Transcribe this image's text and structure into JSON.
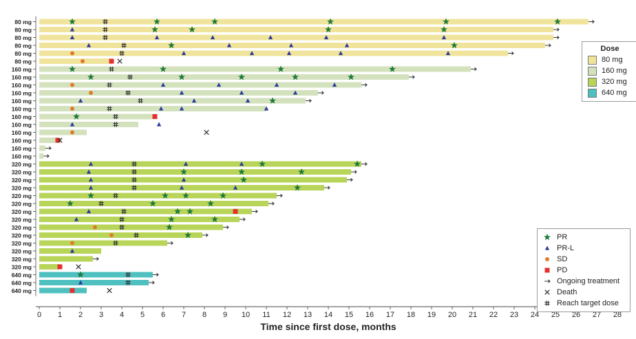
{
  "chart_data": {
    "type": "bar",
    "orientation": "horizontal swimmer",
    "xlabel": "Time since first dose, months",
    "x_ticks": [
      0,
      1,
      2,
      3,
      4,
      5,
      6,
      7,
      8,
      9,
      10,
      11,
      12,
      13,
      14,
      15,
      16,
      17,
      18,
      19,
      20,
      21,
      22,
      23,
      24,
      25,
      26,
      27,
      28
    ],
    "xlim": [
      0,
      28
    ],
    "grid": false,
    "colors": {
      "80 mg": "#f0e49c",
      "160 mg": "#d3e2bd",
      "320 mg": "#b8d55a",
      "640 mg": "#4fc0c0",
      "PR": "#1f7a3b",
      "PR-L": "#2d3c9e",
      "SD": "#e07a2e",
      "PD": "#e53030",
      "arrow": "#333333",
      "death": "#333333",
      "target": "#333333"
    },
    "dose_legend": {
      "title": "Dose",
      "items": [
        "80 mg",
        "160 mg",
        "320 mg",
        "640 mg"
      ]
    },
    "event_legend": [
      {
        "symbol": "PR",
        "label": "PR"
      },
      {
        "symbol": "PR-L",
        "label": "PR-L"
      },
      {
        "symbol": "SD",
        "label": "SD"
      },
      {
        "symbol": "PD",
        "label": "PD"
      },
      {
        "symbol": "arrow",
        "label": "Ongoing treatment"
      },
      {
        "symbol": "death",
        "label": "Death"
      },
      {
        "symbol": "target",
        "label": "Reach target dose"
      }
    ],
    "patients": [
      {
        "dose": "80 mg",
        "end": 26.6,
        "ongoing": true,
        "events": [
          {
            "t": 1.6,
            "type": "PR"
          },
          {
            "t": 3.2,
            "type": "target"
          },
          {
            "t": 5.7,
            "type": "PR"
          },
          {
            "t": 8.5,
            "type": "PR"
          },
          {
            "t": 14.1,
            "type": "PR"
          },
          {
            "t": 19.7,
            "type": "PR"
          },
          {
            "t": 25.1,
            "type": "PR"
          }
        ]
      },
      {
        "dose": "80 mg",
        "end": 24.9,
        "ongoing": true,
        "events": [
          {
            "t": 1.6,
            "type": "PR-L"
          },
          {
            "t": 3.2,
            "type": "target"
          },
          {
            "t": 5.6,
            "type": "PR"
          },
          {
            "t": 7.4,
            "type": "PR"
          },
          {
            "t": 14.0,
            "type": "PR"
          },
          {
            "t": 19.6,
            "type": "PR"
          }
        ]
      },
      {
        "dose": "80 mg",
        "end": 24.9,
        "ongoing": true,
        "events": [
          {
            "t": 1.6,
            "type": "PR-L"
          },
          {
            "t": 3.2,
            "type": "target"
          },
          {
            "t": 5.7,
            "type": "PR-L"
          },
          {
            "t": 8.4,
            "type": "PR-L"
          },
          {
            "t": 11.2,
            "type": "PR-L"
          },
          {
            "t": 13.9,
            "type": "PR-L"
          },
          {
            "t": 19.6,
            "type": "PR-L"
          }
        ]
      },
      {
        "dose": "80 mg",
        "end": 24.5,
        "ongoing": true,
        "events": [
          {
            "t": 2.4,
            "type": "PR-L"
          },
          {
            "t": 4.1,
            "type": "target"
          },
          {
            "t": 6.4,
            "type": "PR"
          },
          {
            "t": 9.2,
            "type": "PR-L"
          },
          {
            "t": 12.2,
            "type": "PR-L"
          },
          {
            "t": 14.9,
            "type": "PR-L"
          },
          {
            "t": 20.1,
            "type": "PR"
          }
        ]
      },
      {
        "dose": "80 mg",
        "end": 22.7,
        "ongoing": true,
        "events": [
          {
            "t": 1.6,
            "type": "SD"
          },
          {
            "t": 4.0,
            "type": "target"
          },
          {
            "t": 7.0,
            "type": "PR-L"
          },
          {
            "t": 10.3,
            "type": "PR-L"
          },
          {
            "t": 12.1,
            "type": "PR-L"
          },
          {
            "t": 14.6,
            "type": "PR-L"
          },
          {
            "t": 19.8,
            "type": "PR-L"
          }
        ]
      },
      {
        "dose": "80 mg",
        "end": 3.5,
        "ongoing": false,
        "events": [
          {
            "t": 2.1,
            "type": "SD"
          },
          {
            "t": 3.5,
            "type": "PD"
          },
          {
            "t": 3.9,
            "type": "death"
          }
        ]
      },
      {
        "dose": "160 mg",
        "end": 20.9,
        "ongoing": true,
        "events": [
          {
            "t": 1.6,
            "type": "PR"
          },
          {
            "t": 3.5,
            "type": "target"
          },
          {
            "t": 6.0,
            "type": "PR"
          },
          {
            "t": 11.7,
            "type": "PR"
          },
          {
            "t": 17.1,
            "type": "PR"
          }
        ]
      },
      {
        "dose": "160 mg",
        "end": 17.9,
        "ongoing": true,
        "events": [
          {
            "t": 2.5,
            "type": "PR"
          },
          {
            "t": 4.4,
            "type": "target"
          },
          {
            "t": 6.9,
            "type": "PR"
          },
          {
            "t": 9.8,
            "type": "PR"
          },
          {
            "t": 12.4,
            "type": "PR"
          },
          {
            "t": 15.1,
            "type": "PR"
          }
        ]
      },
      {
        "dose": "160 mg",
        "end": 15.6,
        "ongoing": true,
        "events": [
          {
            "t": 1.6,
            "type": "SD"
          },
          {
            "t": 3.4,
            "type": "target"
          },
          {
            "t": 6.0,
            "type": "PR-L"
          },
          {
            "t": 8.7,
            "type": "PR-L"
          },
          {
            "t": 11.5,
            "type": "PR-L"
          },
          {
            "t": 14.3,
            "type": "PR-L"
          }
        ]
      },
      {
        "dose": "160 mg",
        "end": 13.5,
        "ongoing": true,
        "events": [
          {
            "t": 2.5,
            "type": "SD"
          },
          {
            "t": 4.3,
            "type": "target"
          },
          {
            "t": 6.9,
            "type": "PR-L"
          },
          {
            "t": 9.8,
            "type": "PR-L"
          },
          {
            "t": 12.4,
            "type": "PR-L"
          }
        ]
      },
      {
        "dose": "160 mg",
        "end": 12.9,
        "ongoing": true,
        "events": [
          {
            "t": 2.0,
            "type": "PR-L"
          },
          {
            "t": 4.9,
            "type": "target"
          },
          {
            "t": 7.5,
            "type": "PR-L"
          },
          {
            "t": 10.1,
            "type": "PR-L"
          },
          {
            "t": 11.3,
            "type": "PR"
          }
        ]
      },
      {
        "dose": "160 mg",
        "end": 11.0,
        "ongoing": false,
        "events": [
          {
            "t": 1.6,
            "type": "SD"
          },
          {
            "t": 3.4,
            "type": "target"
          },
          {
            "t": 5.9,
            "type": "PR-L"
          },
          {
            "t": 6.9,
            "type": "PR-L"
          },
          {
            "t": 11.0,
            "type": "PR-L"
          }
        ]
      },
      {
        "dose": "160 mg",
        "end": 5.7,
        "ongoing": false,
        "events": [
          {
            "t": 1.8,
            "type": "PR"
          },
          {
            "t": 3.7,
            "type": "target"
          },
          {
            "t": 5.6,
            "type": "PD"
          }
        ]
      },
      {
        "dose": "160 mg",
        "end": 4.8,
        "ongoing": false,
        "events": [
          {
            "t": 1.6,
            "type": "PR-L"
          },
          {
            "t": 3.7,
            "type": "target"
          },
          {
            "t": 5.8,
            "type": "PR-L"
          }
        ]
      },
      {
        "dose": "160 mg",
        "end": 2.3,
        "ongoing": false,
        "events": [
          {
            "t": 1.6,
            "type": "SD"
          },
          {
            "t": 8.1,
            "type": "death"
          }
        ]
      },
      {
        "dose": "160 mg",
        "end": 0.9,
        "ongoing": false,
        "events": [
          {
            "t": 0.9,
            "type": "PD"
          },
          {
            "t": 1.0,
            "type": "death"
          }
        ]
      },
      {
        "dose": "160 mg",
        "end": 0.3,
        "ongoing": true,
        "events": []
      },
      {
        "dose": "160 mg",
        "end": 0.2,
        "ongoing": true,
        "events": []
      },
      {
        "dose": "320 mg",
        "end": 15.6,
        "ongoing": true,
        "events": [
          {
            "t": 2.5,
            "type": "PR-L"
          },
          {
            "t": 4.6,
            "type": "target"
          },
          {
            "t": 7.1,
            "type": "PR-L"
          },
          {
            "t": 9.8,
            "type": "PR-L"
          },
          {
            "t": 10.8,
            "type": "PR"
          },
          {
            "t": 15.4,
            "type": "PR"
          }
        ]
      },
      {
        "dose": "320 mg",
        "end": 15.1,
        "ongoing": true,
        "events": [
          {
            "t": 2.4,
            "type": "PR-L"
          },
          {
            "t": 4.6,
            "type": "target"
          },
          {
            "t": 7.0,
            "type": "PR"
          },
          {
            "t": 9.8,
            "type": "PR"
          },
          {
            "t": 12.7,
            "type": "PR"
          }
        ]
      },
      {
        "dose": "320 mg",
        "end": 14.9,
        "ongoing": true,
        "events": [
          {
            "t": 2.5,
            "type": "PR-L"
          },
          {
            "t": 4.6,
            "type": "target"
          },
          {
            "t": 7.0,
            "type": "PR-L"
          },
          {
            "t": 9.9,
            "type": "PR"
          }
        ]
      },
      {
        "dose": "320 mg",
        "end": 13.8,
        "ongoing": true,
        "events": [
          {
            "t": 2.5,
            "type": "PR-L"
          },
          {
            "t": 4.6,
            "type": "target"
          },
          {
            "t": 6.9,
            "type": "PR-L"
          },
          {
            "t": 9.5,
            "type": "PR-L"
          },
          {
            "t": 12.5,
            "type": "PR"
          }
        ]
      },
      {
        "dose": "320 mg",
        "end": 11.5,
        "ongoing": true,
        "events": [
          {
            "t": 2.5,
            "type": "PR"
          },
          {
            "t": 3.7,
            "type": "target"
          },
          {
            "t": 6.1,
            "type": "PR"
          },
          {
            "t": 7.1,
            "type": "PR"
          },
          {
            "t": 8.9,
            "type": "PR"
          }
        ]
      },
      {
        "dose": "320 mg",
        "end": 11.1,
        "ongoing": true,
        "events": [
          {
            "t": 1.5,
            "type": "PR"
          },
          {
            "t": 3.0,
            "type": "target"
          },
          {
            "t": 5.5,
            "type": "PR"
          },
          {
            "t": 8.3,
            "type": "PR"
          }
        ]
      },
      {
        "dose": "320 mg",
        "end": 10.3,
        "ongoing": true,
        "events": [
          {
            "t": 2.4,
            "type": "PR-L"
          },
          {
            "t": 4.1,
            "type": "target"
          },
          {
            "t": 6.7,
            "type": "PR"
          },
          {
            "t": 7.3,
            "type": "PR"
          },
          {
            "t": 9.5,
            "type": "PD"
          }
        ]
      },
      {
        "dose": "320 mg",
        "end": 9.7,
        "ongoing": true,
        "events": [
          {
            "t": 1.8,
            "type": "PR-L"
          },
          {
            "t": 4.0,
            "type": "target"
          },
          {
            "t": 6.4,
            "type": "PR"
          },
          {
            "t": 8.5,
            "type": "PR"
          }
        ]
      },
      {
        "dose": "320 mg",
        "end": 8.9,
        "ongoing": true,
        "events": [
          {
            "t": 2.7,
            "type": "SD"
          },
          {
            "t": 4.0,
            "type": "target"
          },
          {
            "t": 6.3,
            "type": "PR"
          }
        ]
      },
      {
        "dose": "320 mg",
        "end": 7.9,
        "ongoing": true,
        "events": [
          {
            "t": 3.5,
            "type": "SD"
          },
          {
            "t": 4.7,
            "type": "target"
          },
          {
            "t": 7.2,
            "type": "PR"
          }
        ]
      },
      {
        "dose": "320 mg",
        "end": 6.2,
        "ongoing": true,
        "events": [
          {
            "t": 1.6,
            "type": "SD"
          },
          {
            "t": 3.7,
            "type": "target"
          }
        ]
      },
      {
        "dose": "320 mg",
        "end": 3.0,
        "ongoing": false,
        "events": [
          {
            "t": 1.6,
            "type": "PR-L"
          }
        ]
      },
      {
        "dose": "320 mg",
        "end": 2.6,
        "ongoing": true,
        "events": []
      },
      {
        "dose": "320 mg",
        "end": 1.0,
        "ongoing": false,
        "events": [
          {
            "t": 1.0,
            "type": "PD"
          },
          {
            "t": 1.9,
            "type": "death"
          }
        ]
      },
      {
        "dose": "640 mg",
        "end": 5.5,
        "ongoing": true,
        "events": [
          {
            "t": 2.0,
            "type": "PR"
          },
          {
            "t": 4.3,
            "type": "target"
          }
        ]
      },
      {
        "dose": "640 mg",
        "end": 5.3,
        "ongoing": true,
        "events": [
          {
            "t": 2.0,
            "type": "PR-L"
          },
          {
            "t": 4.3,
            "type": "target"
          }
        ]
      },
      {
        "dose": "640 mg",
        "end": 2.3,
        "ongoing": false,
        "events": [
          {
            "t": 1.6,
            "type": "PD"
          },
          {
            "t": 3.4,
            "type": "death"
          }
        ]
      }
    ]
  }
}
